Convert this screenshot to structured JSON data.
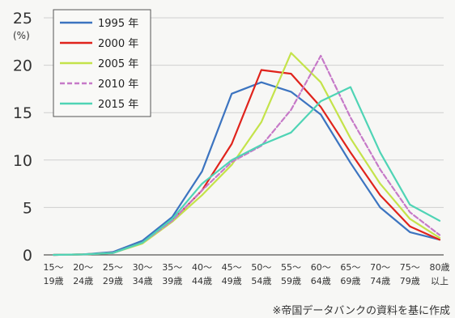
{
  "chart_data": {
    "type": "line",
    "title": "",
    "xlabel": "",
    "ylabel": "(%)",
    "ylim": [
      0,
      25
    ],
    "yticks": [
      "0",
      "5",
      "10",
      "15",
      "20",
      "25"
    ],
    "grid": true,
    "legend_position": "top-left",
    "categories": [
      {
        "top": "15～",
        "bottom": "19歳"
      },
      {
        "top": "20～",
        "bottom": "24歳"
      },
      {
        "top": "25～",
        "bottom": "29歳"
      },
      {
        "top": "30～",
        "bottom": "34歳"
      },
      {
        "top": "35～",
        "bottom": "39歳"
      },
      {
        "top": "40～",
        "bottom": "44歳"
      },
      {
        "top": "45～",
        "bottom": "49歳"
      },
      {
        "top": "50～",
        "bottom": "54歳"
      },
      {
        "top": "55～",
        "bottom": "59歳"
      },
      {
        "top": "60～",
        "bottom": "64歳"
      },
      {
        "top": "65～",
        "bottom": "69歳"
      },
      {
        "top": "70～",
        "bottom": "74歳"
      },
      {
        "top": "75～",
        "bottom": "79歳"
      },
      {
        "top": "80歳",
        "bottom": "以上"
      }
    ],
    "series": [
      {
        "name": "1995 年",
        "color": "#3c74c0",
        "dash": "",
        "values": [
          0.0,
          0.05,
          0.3,
          1.5,
          4.0,
          8.8,
          17.0,
          18.2,
          17.2,
          14.8,
          9.7,
          5.0,
          2.4,
          1.6
        ]
      },
      {
        "name": "2000 年",
        "color": "#e0231c",
        "dash": "",
        "values": [
          0.0,
          0.05,
          0.2,
          1.3,
          3.6,
          6.8,
          11.7,
          19.5,
          19.1,
          15.6,
          10.8,
          6.3,
          3.0,
          1.6
        ]
      },
      {
        "name": "2005 年",
        "color": "#c4e34a",
        "dash": "",
        "values": [
          0.0,
          0.05,
          0.2,
          1.2,
          3.5,
          6.3,
          9.5,
          14.0,
          21.3,
          18.2,
          12.3,
          7.5,
          3.8,
          1.8
        ]
      },
      {
        "name": "2010 年",
        "color": "#c679c8",
        "dash": "6,3",
        "values": [
          0.0,
          0.05,
          0.2,
          1.3,
          3.6,
          6.8,
          9.8,
          11.5,
          15.3,
          21.0,
          14.5,
          9.0,
          4.5,
          2.1
        ]
      },
      {
        "name": "2015 年",
        "color": "#4fd4b5",
        "dash": "",
        "values": [
          0.0,
          0.05,
          0.2,
          1.3,
          3.8,
          7.5,
          10.0,
          11.6,
          12.9,
          16.2,
          17.7,
          10.8,
          5.3,
          3.6
        ]
      }
    ]
  },
  "footnote": "※帝国データバンクの資料を基に作成"
}
